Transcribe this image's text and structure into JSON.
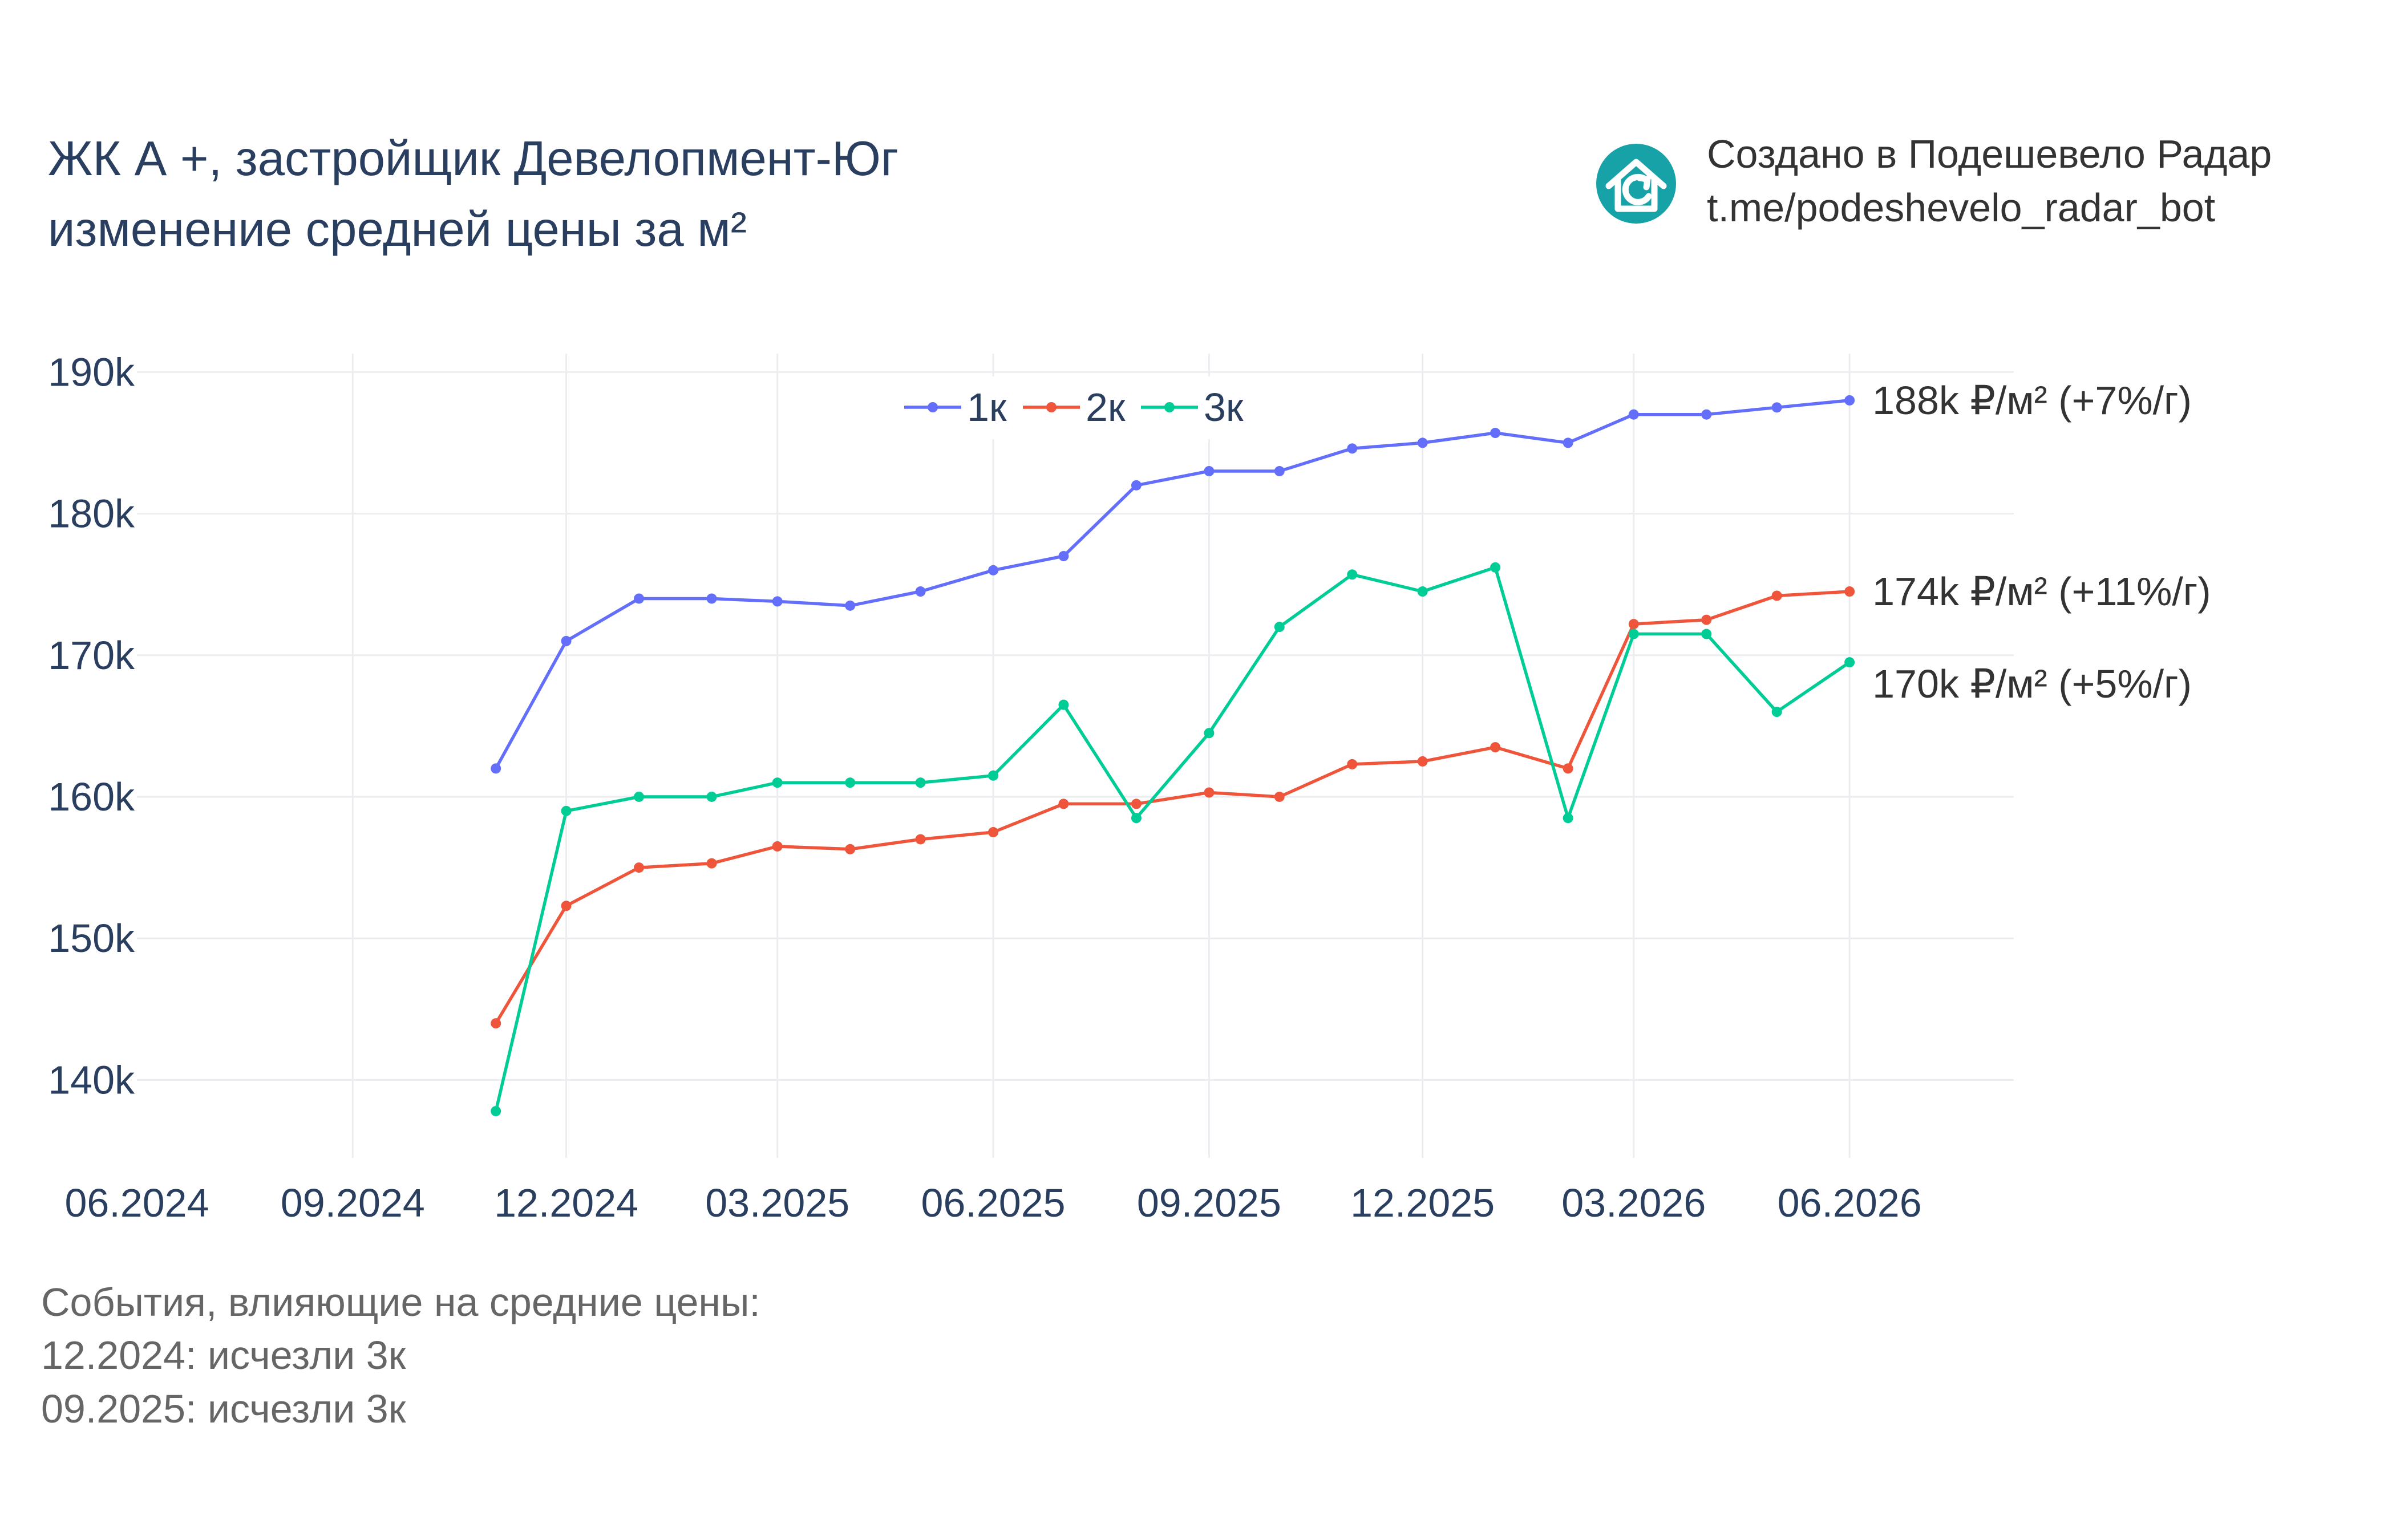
{
  "header": {
    "title_line1": "ЖК А +, застройщик Девелопмент-Юг",
    "title_line2": "изменение средней цены за м²"
  },
  "branding": {
    "line1": "Создано в Подешевело Радар",
    "line2": "t.me/podeshevelo_radar_bot",
    "logo_icon": "house-refresh-icon",
    "logo_color": "#17a2a8"
  },
  "footer": {
    "heading": "События, влияющие на средние цены:",
    "events": [
      "12.2024: исчезли 3к",
      "09.2025: исчезли 3к"
    ]
  },
  "chart_data": {
    "type": "line",
    "x_tick_labels": [
      "06.2024",
      "09.2024",
      "12.2024",
      "03.2025",
      "06.2025",
      "09.2025",
      "12.2025",
      "03.2026",
      "06.2026"
    ],
    "x_ticks": [
      "2024-06-01",
      "2024-09-01",
      "2024-12-01",
      "2025-03-01",
      "2025-06-01",
      "2025-09-01",
      "2025-12-01",
      "2026-03-01",
      "2026-06-01"
    ],
    "x_range": [
      "2024-06-01",
      "2026-08-10"
    ],
    "y_ticks": [
      140000,
      150000,
      160000,
      170000,
      180000,
      190000
    ],
    "y_tick_labels": [
      "140k",
      "150k",
      "160k",
      "170k",
      "180k",
      "190k"
    ],
    "y_range": [
      134500,
      191300
    ],
    "grid": true,
    "legend_position": "top-center",
    "x": [
      "2024-11-01",
      "2024-12-01",
      "2025-01-01",
      "2025-02-01",
      "2025-03-01",
      "2025-04-01",
      "2025-05-01",
      "2025-06-01",
      "2025-07-01",
      "2025-08-01",
      "2025-09-01",
      "2025-10-01",
      "2025-11-01",
      "2025-12-01",
      "2026-01-01",
      "2026-02-01",
      "2026-03-01",
      "2026-04-01",
      "2026-05-01",
      "2026-06-01"
    ],
    "series": [
      {
        "name": "1к",
        "color": "#636efa",
        "values": [
          162000,
          171000,
          174000,
          174000,
          173800,
          173500,
          174500,
          176000,
          177000,
          182000,
          183000,
          183000,
          184600,
          185000,
          185700,
          185000,
          187000,
          187000,
          187500,
          188000
        ],
        "end_label": "188k ₽/м² (+7%/г)"
      },
      {
        "name": "2к",
        "color": "#ef553b",
        "values": [
          144000,
          152300,
          155000,
          155300,
          156500,
          156300,
          157000,
          157500,
          159500,
          159500,
          160300,
          160000,
          162300,
          162500,
          163500,
          162000,
          172200,
          172500,
          174200,
          174500
        ],
        "end_label": "174k ₽/м² (+11%/г)"
      },
      {
        "name": "3к",
        "color": "#00cc96",
        "values": [
          137800,
          159000,
          160000,
          160000,
          161000,
          161000,
          161000,
          161500,
          166500,
          158500,
          164500,
          172000,
          175700,
          174500,
          176200,
          158500,
          171500,
          171500,
          166000,
          169500
        ],
        "end_label": "170k ₽/м² (+5%/г)"
      }
    ]
  }
}
